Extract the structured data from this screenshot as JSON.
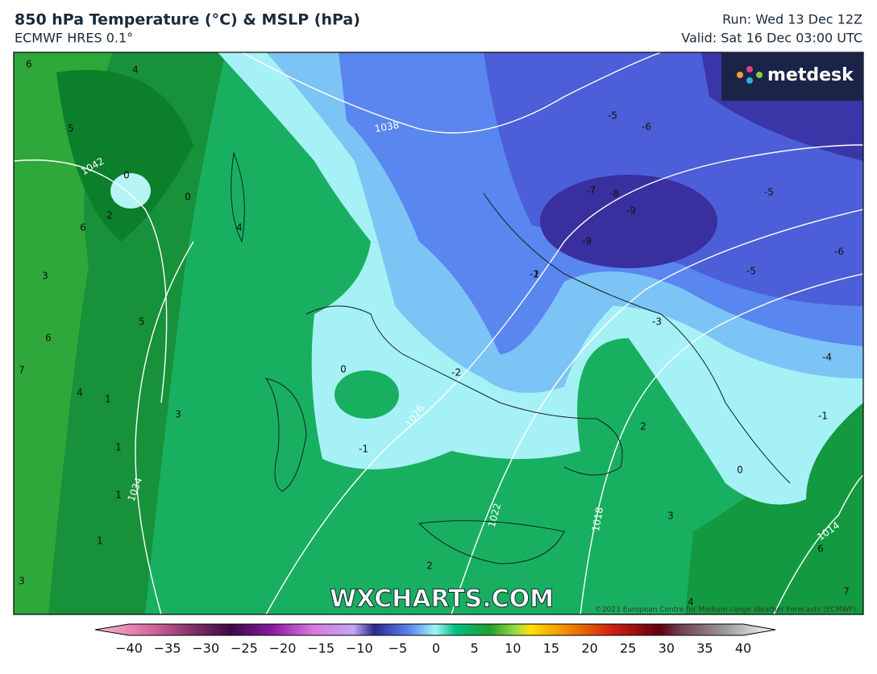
{
  "header": {
    "title": "850 hPa Temperature (°C) & MSLP (hPa)",
    "subtitle": "ECMWF HRES 0.1°",
    "run": "Run: Wed 13 Dec 12Z",
    "valid": "Valid: Sat 16 Dec 03:00 UTC"
  },
  "logo": "metdesk",
  "watermark": "WXCHARTS.COM",
  "copyright": "©2023 European Centre for Medium-range Weather Forecasts (ECMWF)",
  "isobar_labels": [
    "1042",
    "1038",
    "1034",
    "1026",
    "1022",
    "1018",
    "1014"
  ],
  "temperature_labels": [
    "6",
    "4",
    "5",
    "0",
    "0",
    "2",
    "6",
    "4",
    "3",
    "5",
    "6",
    "7",
    "4",
    "1",
    "3",
    "1",
    "1",
    "1",
    "0",
    "-1",
    "-2",
    "-1",
    "2",
    "-2",
    "-3",
    "-5",
    "-6",
    "-7",
    "-8",
    "-9",
    "-9",
    "-5",
    "-5",
    "-6",
    "-4",
    "-1",
    "0",
    "3",
    "2",
    "6",
    "7",
    "4",
    "3"
  ],
  "colorbar": {
    "ticks": [
      "−40",
      "−35",
      "−30",
      "−25",
      "−20",
      "−15",
      "−10",
      "−5",
      "0",
      "5",
      "10",
      "15",
      "20",
      "25",
      "30",
      "35",
      "40"
    ]
  }
}
